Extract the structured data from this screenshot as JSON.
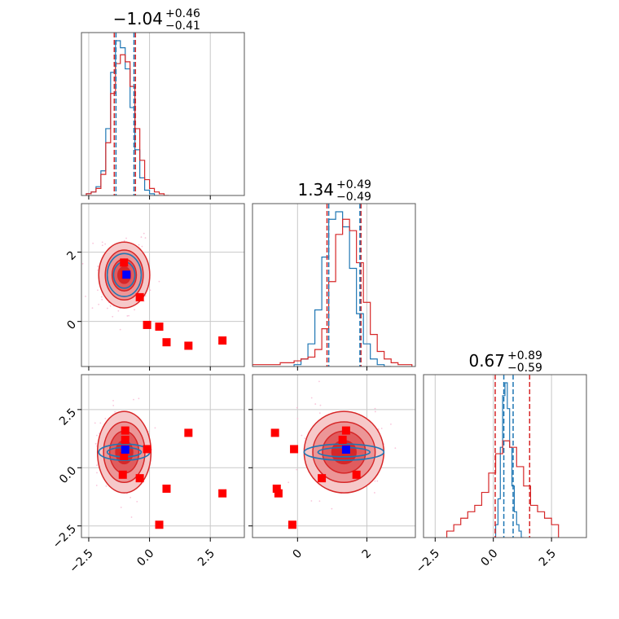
{
  "chart_data": {
    "type": "corner",
    "colors": {
      "primary": "#d62728",
      "secondary": "#1f77b4",
      "marker": "#ff0000",
      "truth": "#0000ff",
      "grid": "#c8c8c8",
      "samples": "#f7b6d2"
    },
    "grid": true,
    "params": [
      {
        "index": 0,
        "median": -1.04,
        "title_main": "−1.04",
        "title_plus": "+0.46",
        "title_minus": "−0.41",
        "lim": [
          -2.8,
          3.9
        ]
      },
      {
        "index": 1,
        "median": 1.34,
        "title_main": "1.34",
        "title_plus": "+0.49",
        "title_minus": "−0.49",
        "lim": [
          -1.3,
          3.4
        ]
      },
      {
        "index": 2,
        "median": 0.67,
        "title_main": "0.67",
        "title_plus": "+0.89",
        "title_minus": "−0.59",
        "lim": [
          -3.0,
          4.0
        ]
      }
    ],
    "ticks": {
      "x0": {
        "values": [
          -2.5,
          0.0,
          2.5
        ],
        "labels": [
          "−2.5",
          "0.0",
          "2.5"
        ]
      },
      "x1": {
        "values": [
          0,
          2
        ],
        "labels": [
          "0",
          "2"
        ]
      },
      "x2": {
        "values": [
          -2.5,
          0.0,
          2.5
        ],
        "labels": [
          "−2.5",
          "0.0",
          "2.5"
        ]
      },
      "y1": {
        "values": [
          0,
          2
        ],
        "labels": [
          "0",
          "2"
        ]
      },
      "y2": {
        "values": [
          -2.5,
          0.0,
          2.5
        ],
        "labels": [
          "−2.5",
          "0.0",
          "2.5"
        ]
      }
    },
    "quantile_lines": {
      "primary": [
        [
          -1.45,
          -0.58
        ],
        [
          0.85,
          1.83
        ],
        [
          0.08,
          1.56
        ]
      ],
      "secondary": [
        [
          -1.38,
          -0.64
        ],
        [
          0.9,
          1.8
        ],
        [
          0.45,
          0.85
        ]
      ]
    },
    "hist_primary": [
      {
        "edges": [
          -2.6,
          -2.4,
          -2.2,
          -2.0,
          -1.8,
          -1.6,
          -1.4,
          -1.2,
          -1.0,
          -0.8,
          -0.6,
          -0.4,
          -0.2,
          0.0,
          0.2,
          0.4,
          0.6,
          0.8
        ],
        "counts": [
          1,
          2,
          4,
          12,
          30,
          58,
          75,
          80,
          76,
          62,
          38,
          20,
          9,
          4,
          2,
          1,
          0
        ]
      },
      {
        "edges": [
          -1.3,
          -1.1,
          -0.9,
          -0.7,
          -0.5,
          -0.3,
          -0.1,
          0.1,
          0.3,
          0.5,
          0.7,
          0.9,
          1.1,
          1.3,
          1.5,
          1.7,
          1.9,
          2.1,
          2.3,
          2.5,
          2.7,
          2.9,
          3.1,
          3.3
        ],
        "counts": [
          1,
          1,
          1,
          1,
          2,
          2,
          3,
          4,
          5,
          9,
          20,
          45,
          70,
          78,
          72,
          55,
          34,
          17,
          8,
          4,
          2,
          1,
          1
        ]
      },
      {
        "edges": [
          -2.0,
          -1.7,
          -1.4,
          -1.1,
          -0.8,
          -0.5,
          -0.2,
          0.1,
          0.4,
          0.7,
          1.0,
          1.3,
          1.6,
          1.9,
          2.2,
          2.5,
          2.8
        ],
        "counts": [
          1,
          2,
          3,
          4,
          5,
          7,
          10,
          13,
          15,
          14,
          11,
          8,
          5,
          4,
          3,
          2
        ]
      }
    ],
    "hist_secondary": [
      {
        "edges": [
          -2.6,
          -2.4,
          -2.2,
          -2.0,
          -1.8,
          -1.6,
          -1.4,
          -1.2,
          -1.0,
          -0.8,
          -0.6,
          -0.4,
          -0.2,
          0.0,
          0.2,
          0.4
        ],
        "counts": [
          1,
          2,
          5,
          14,
          38,
          70,
          88,
          84,
          72,
          50,
          26,
          10,
          3,
          1,
          0
        ]
      },
      {
        "edges": [
          -0.1,
          0.1,
          0.3,
          0.5,
          0.7,
          0.9,
          1.1,
          1.3,
          1.5,
          1.7,
          1.9,
          2.1,
          2.3,
          2.5,
          2.7
        ],
        "counts": [
          1,
          4,
          12,
          30,
          58,
          78,
          82,
          74,
          52,
          28,
          12,
          4,
          1,
          0
        ]
      },
      {
        "edges": [
          0.1,
          0.2,
          0.3,
          0.4,
          0.5,
          0.6,
          0.7,
          0.8,
          0.9,
          1.0,
          1.1,
          1.2,
          1.3
        ],
        "counts": [
          2,
          6,
          14,
          22,
          24,
          20,
          14,
          8,
          4,
          2,
          1,
          0
        ]
      }
    ],
    "pairs": [
      {
        "x": 0,
        "y": 1,
        "markers": [
          [
            -1.05,
            1.7
          ],
          [
            -1.0,
            1.35
          ],
          [
            -0.4,
            0.7
          ],
          [
            -0.1,
            -0.1
          ],
          [
            0.4,
            -0.15
          ],
          [
            0.7,
            -0.6
          ],
          [
            1.6,
            -0.7
          ],
          [
            3.0,
            -0.55
          ]
        ],
        "truth": [
          -0.95,
          1.35
        ],
        "contours_primary": [
          [
            1.05,
            0.95
          ],
          [
            0.78,
            0.72
          ],
          [
            0.5,
            0.46
          ],
          [
            0.26,
            0.24
          ]
        ],
        "contours_secondary": [
          [
            0.7,
            0.62
          ],
          [
            0.44,
            0.38
          ]
        ]
      },
      {
        "x": 0,
        "y": 2,
        "markers": [
          [
            -1.0,
            1.6
          ],
          [
            -1.0,
            1.2
          ],
          [
            -1.05,
            0.5
          ],
          [
            -0.1,
            0.8
          ],
          [
            -1.1,
            -0.3
          ],
          [
            -0.4,
            -0.45
          ],
          [
            1.6,
            1.5
          ],
          [
            0.7,
            -0.9
          ],
          [
            3.0,
            -1.1
          ],
          [
            0.4,
            -2.45
          ]
        ],
        "truth": [
          -1.0,
          0.78
        ],
        "contours_primary": [
          [
            1.1,
            1.75
          ],
          [
            0.85,
            1.3
          ],
          [
            0.6,
            0.9
          ],
          [
            0.35,
            0.5
          ]
        ],
        "contours_secondary": [
          [
            1.05,
            0.35
          ],
          [
            0.7,
            0.2
          ]
        ]
      },
      {
        "x": 1,
        "y": 2,
        "markers": [
          [
            -0.65,
            1.5
          ],
          [
            -0.1,
            0.8
          ],
          [
            -0.6,
            -0.9
          ],
          [
            -0.55,
            -1.1
          ],
          [
            -0.15,
            -2.45
          ],
          [
            0.7,
            -0.45
          ],
          [
            1.3,
            1.2
          ],
          [
            1.4,
            1.6
          ],
          [
            1.7,
            -0.3
          ]
        ],
        "truth": [
          1.4,
          0.78
        ],
        "contours_primary": [
          [
            1.15,
            1.75
          ],
          [
            0.9,
            1.3
          ],
          [
            0.62,
            0.9
          ],
          [
            0.35,
            0.5
          ]
        ],
        "contours_secondary": [
          [
            1.15,
            0.35
          ],
          [
            0.75,
            0.2
          ]
        ]
      }
    ]
  }
}
